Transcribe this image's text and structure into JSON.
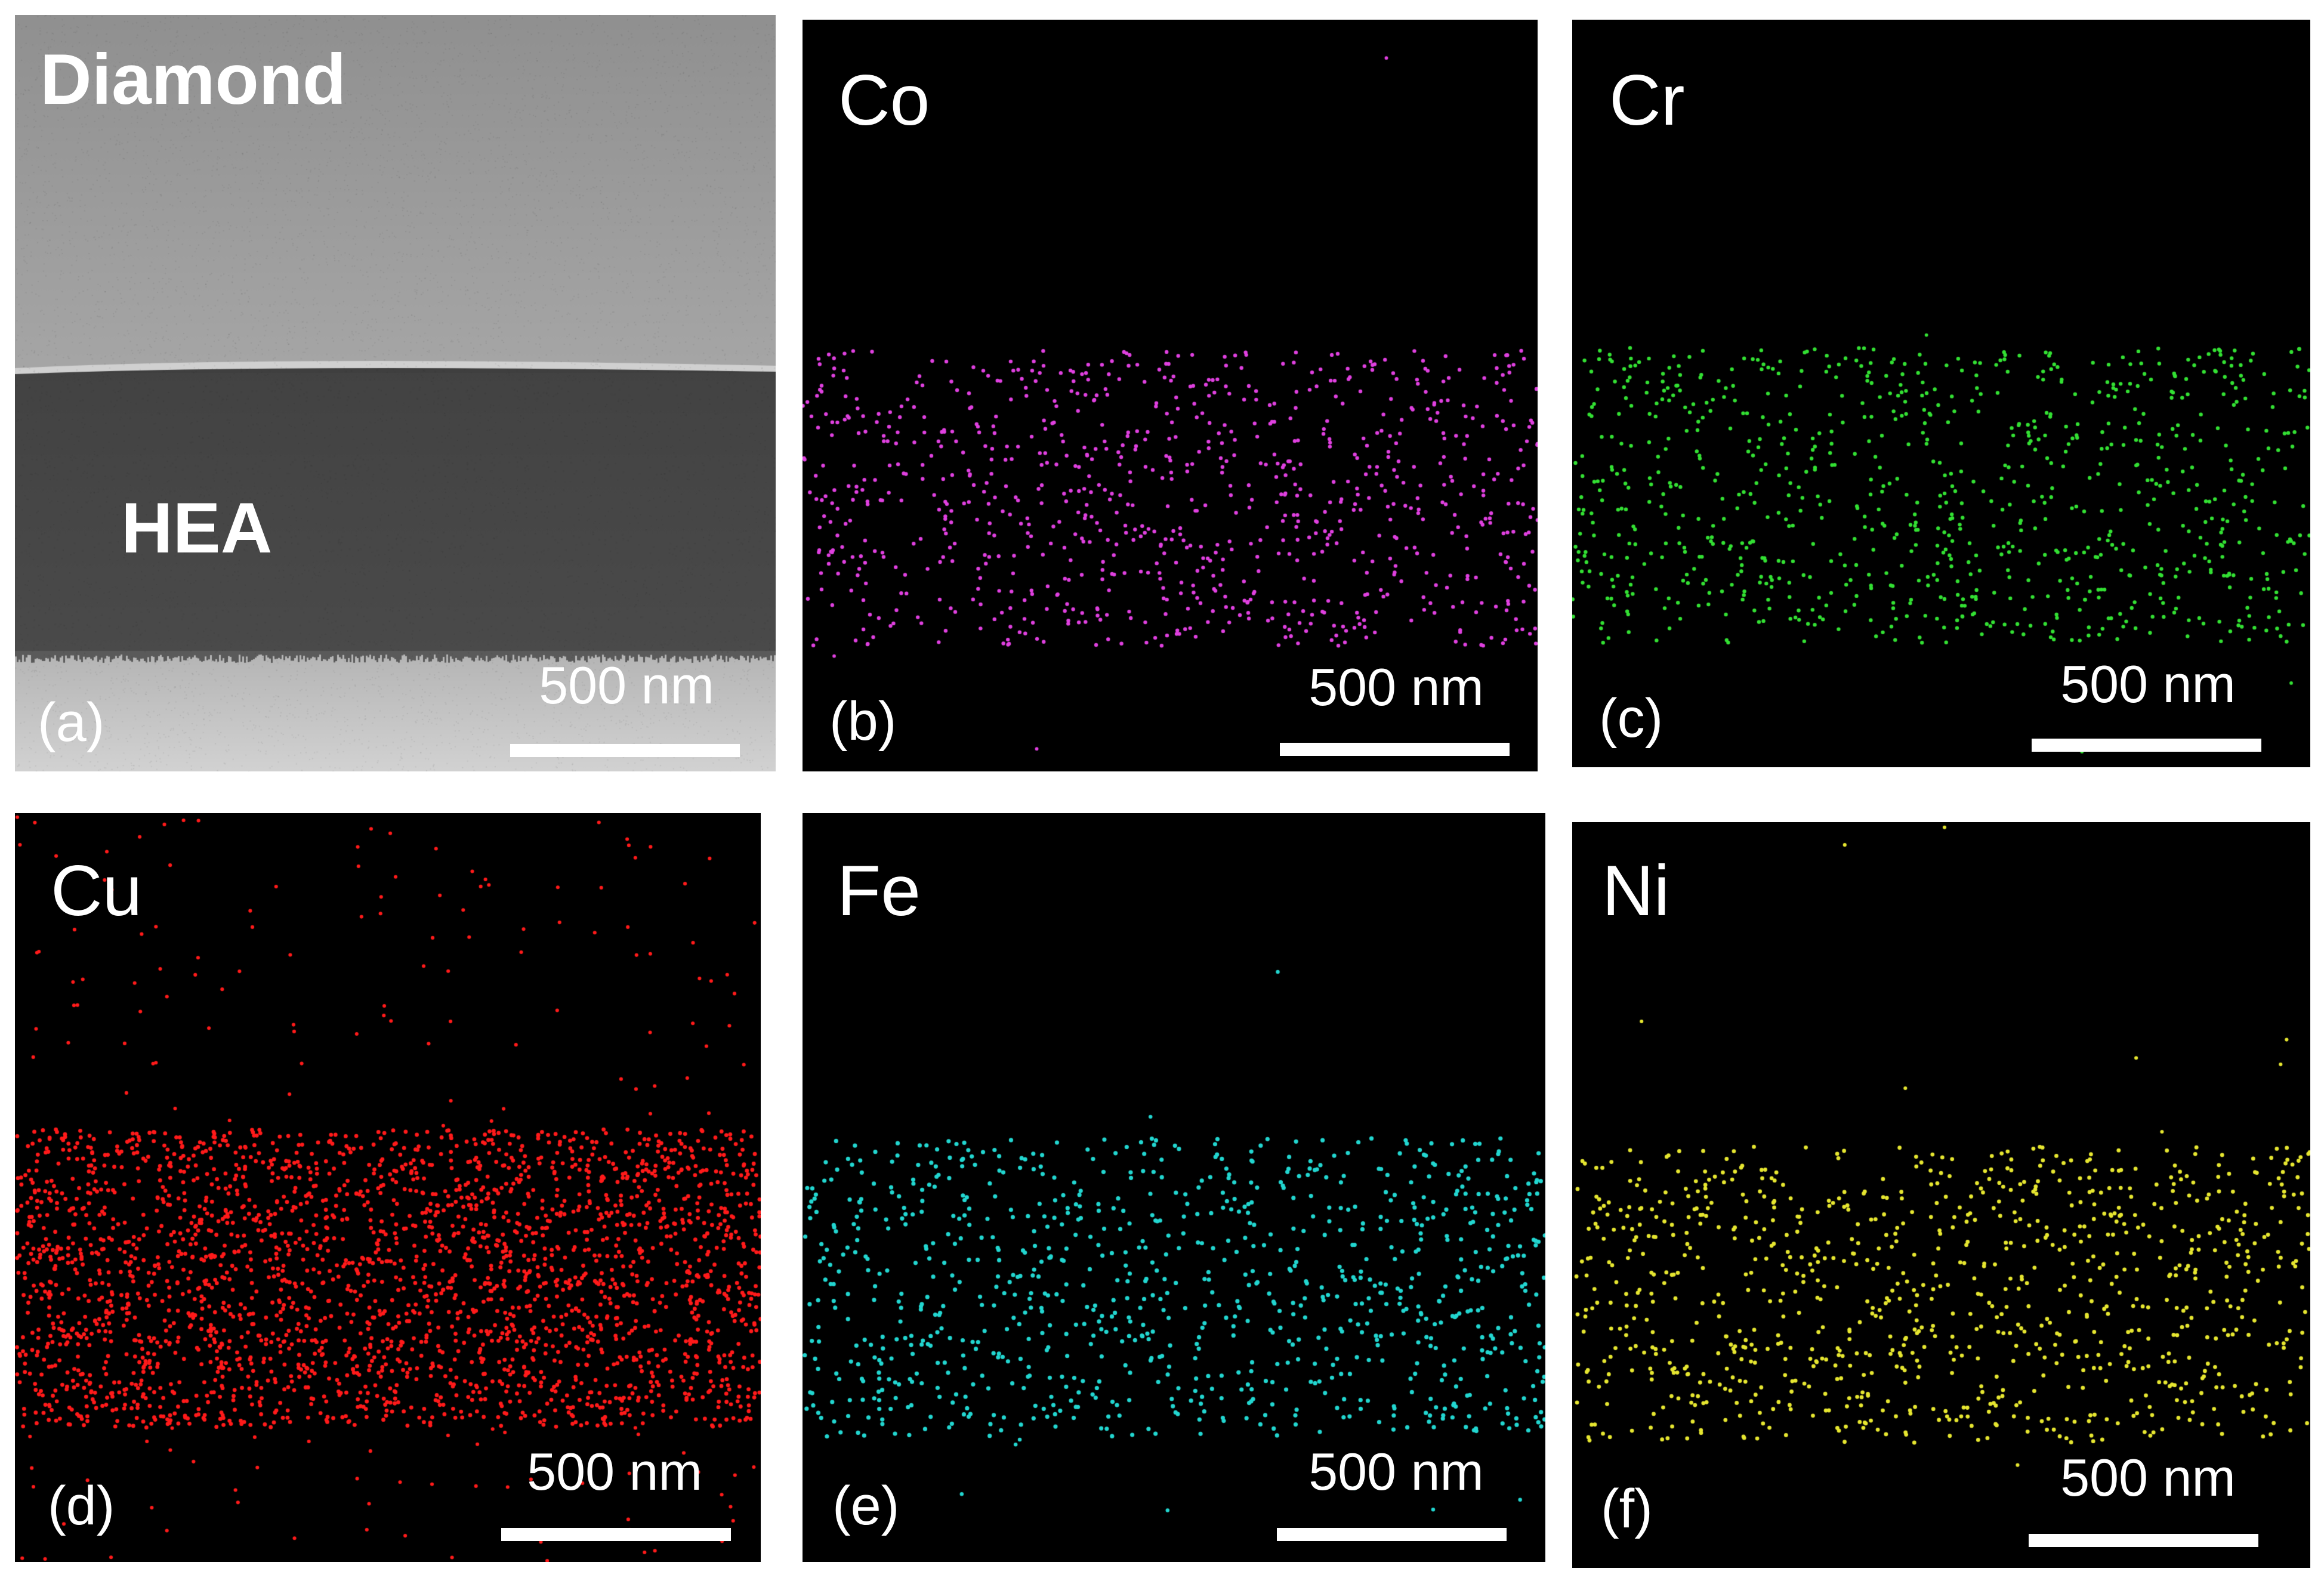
{
  "panels": {
    "a": {
      "label": "(a)",
      "region_labels": {
        "top": "Diamond",
        "middle": "HEA"
      },
      "scale_bar": "500 nm"
    },
    "b": {
      "label": "(b)",
      "element": "Co",
      "scale_bar": "500 nm",
      "dot_color": "#e040e0"
    },
    "c": {
      "label": "(c)",
      "element": "Cr",
      "scale_bar": "500 nm",
      "dot_color": "#33e033"
    },
    "d": {
      "label": "(d)",
      "element": "Cu",
      "scale_bar": "500 nm",
      "dot_color": "#ff1a1a"
    },
    "e": {
      "label": "(e)",
      "element": "Fe",
      "scale_bar": "500 nm",
      "dot_color": "#22d6d0"
    },
    "f": {
      "label": "(f)",
      "element": "Ni",
      "scale_bar": "500 nm",
      "dot_color": "#e6e630"
    }
  }
}
